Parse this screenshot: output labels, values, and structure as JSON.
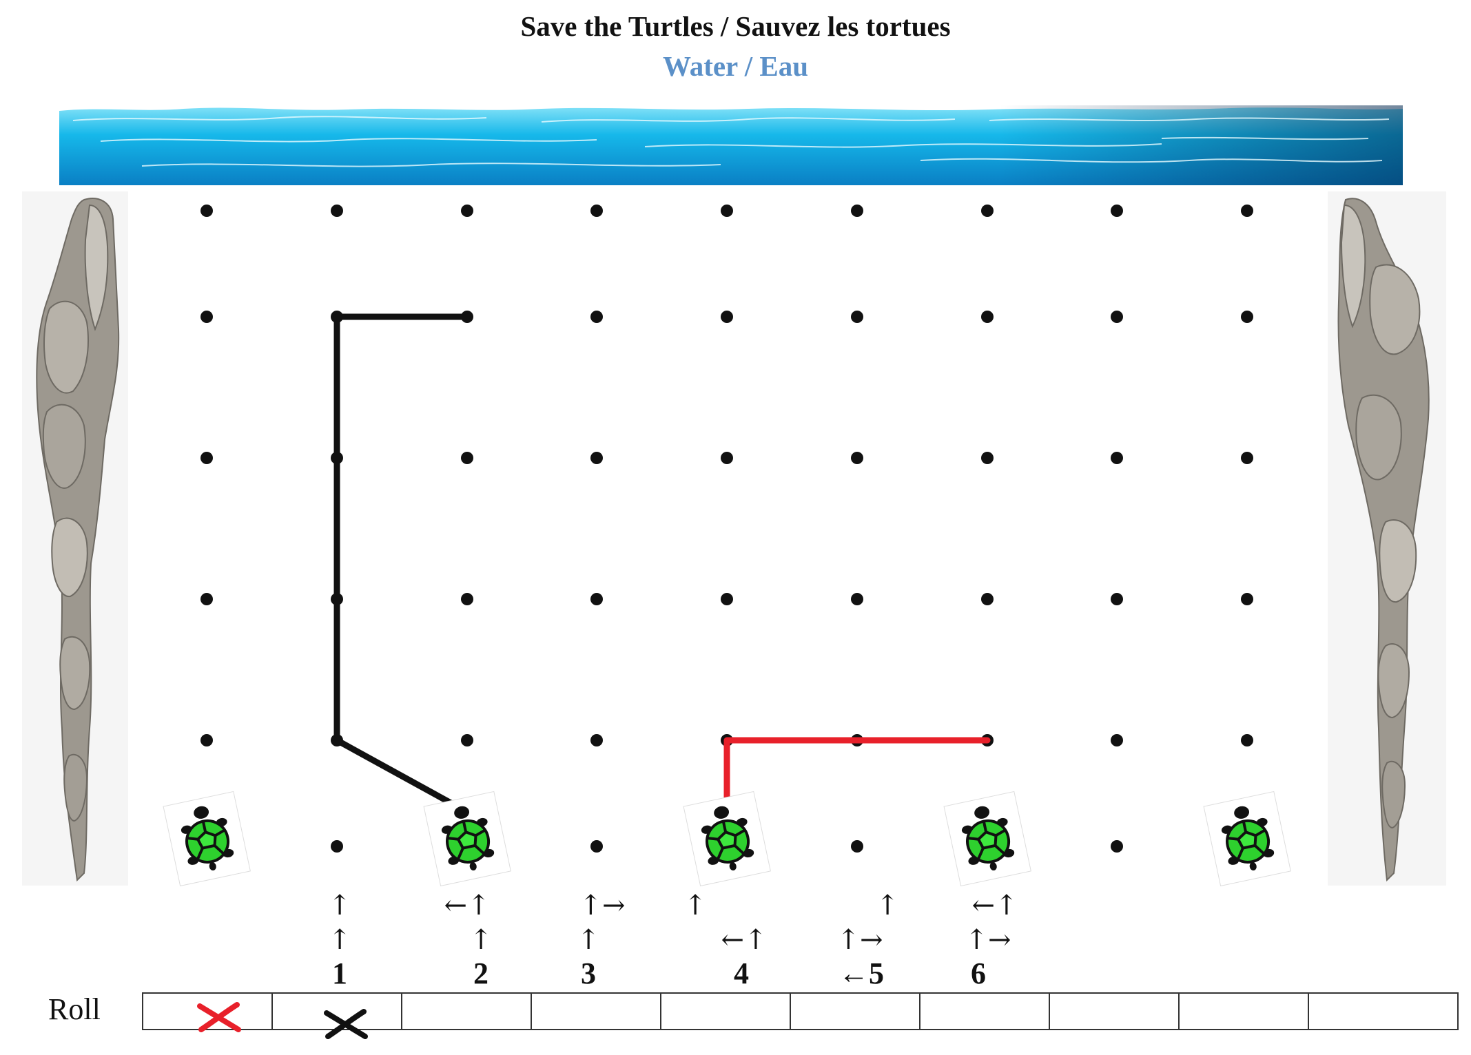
{
  "header": {
    "title": "Save the Turtles / Sauvez les tortues",
    "subtitle": "Water / Eau"
  },
  "colors": {
    "subtitle": "#5b90c8",
    "red_path": "#e8202a",
    "black_path": "#111111",
    "turtle_shell": "#2ed12e"
  },
  "board": {
    "columns": 9,
    "rows": 6,
    "turtle_columns": [
      1,
      3,
      5,
      7,
      9
    ],
    "black_path": [
      [
        3,
        1
      ],
      [
        2,
        2
      ],
      [
        2,
        4
      ],
      [
        2,
        5
      ],
      [
        3,
        5
      ]
    ],
    "red_path": [
      [
        5,
        1
      ],
      [
        5,
        2
      ],
      [
        7,
        2
      ]
    ]
  },
  "moves": [
    {
      "number": "1",
      "hint_row1": "↑",
      "hint_row2": "↑",
      "number_text": "1"
    },
    {
      "number": "2",
      "hint_row1": "←↑",
      "hint_row2": "↑",
      "number_text": "2"
    },
    {
      "number": "3",
      "hint_row1": "↑→",
      "hint_row2": "↑",
      "number_text": "3"
    },
    {
      "number": "4",
      "hint_row1": "↑",
      "hint_row2": "←↑",
      "number_text": "4"
    },
    {
      "number": "5",
      "hint_row1": "↑",
      "hint_row2": "↑→",
      "number_text": "←5"
    },
    {
      "number": "6",
      "hint_row1": "←↑",
      "hint_row2": "↑→",
      "number_text": "6"
    }
  ],
  "roll": {
    "label": "Roll",
    "cells": 10,
    "marks": [
      {
        "cell": 1,
        "color": "red",
        "symbol": "x"
      },
      {
        "cell": 2,
        "color": "black",
        "symbol": "x"
      }
    ]
  }
}
